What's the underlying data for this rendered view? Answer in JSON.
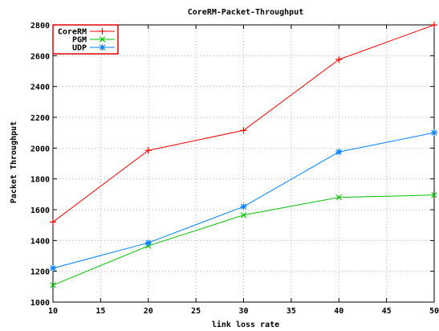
{
  "chart_data": {
    "type": "line",
    "title": "CoreRM-Packet-Throughput",
    "xlabel": "link loss rate",
    "ylabel": "Packet Throughput",
    "xlim": [
      10,
      50
    ],
    "ylim": [
      1000,
      2800
    ],
    "x_ticks": [
      10,
      15,
      20,
      25,
      30,
      35,
      40,
      45,
      50
    ],
    "y_ticks": [
      1000,
      1200,
      1400,
      1600,
      1800,
      2000,
      2200,
      2400,
      2600,
      2800
    ],
    "grid": true,
    "legend_position": "top-left",
    "x": [
      10,
      20,
      30,
      40,
      50
    ],
    "series": [
      {
        "name": "CoreRM",
        "color": "#ff0000",
        "marker": "plus",
        "values": [
          1520,
          1985,
          2115,
          2575,
          2800
        ]
      },
      {
        "name": "PGM",
        "color": "#00c000",
        "marker": "cross",
        "values": [
          1110,
          1365,
          1565,
          1680,
          1695
        ]
      },
      {
        "name": "UDP",
        "color": "#0080ff",
        "marker": "star",
        "values": [
          1220,
          1385,
          1620,
          1975,
          2100
        ]
      }
    ],
    "legend_border_color": "#e00000"
  }
}
